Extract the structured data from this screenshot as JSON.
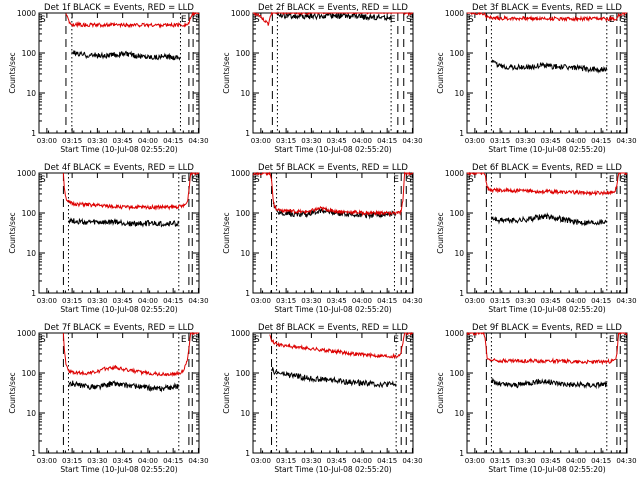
{
  "colors": {
    "events": "#000000",
    "lld": "#dd0000",
    "axis": "#000000",
    "background": "#ffffff"
  },
  "chart_data": [
    {
      "type": "line",
      "title": "Det 1f BLACK = Events, RED = LLD",
      "xlabel": "Start Time (10-Jul-08 02:55:20)",
      "ylabel": "Counts/sec",
      "x_ticks": [
        "03:00",
        "03:15",
        "03:30",
        "03:45",
        "04:00",
        "04:15",
        "04:30"
      ],
      "y_ticks": [
        "1",
        "10",
        "100",
        "1000"
      ],
      "yscale": "log",
      "ylim": [
        1,
        1000
      ],
      "xlim_minutes": [
        0,
        95
      ],
      "marker_labels": [
        "S",
        "E",
        "S"
      ],
      "markers": {
        "dashed": [
          16,
          89,
          91.5
        ],
        "dotted": [
          19.5,
          84
        ]
      },
      "series": [
        {
          "role": "events",
          "x": [
            19.5,
            21,
            25,
            30,
            35,
            40,
            45,
            50,
            55,
            60,
            65,
            70,
            75,
            80,
            84
          ],
          "y": [
            110,
            98,
            92,
            88,
            87,
            84,
            90,
            96,
            88,
            84,
            82,
            80,
            80,
            80,
            80
          ]
        },
        {
          "role": "lld",
          "x": [
            16,
            17,
            18,
            20,
            25,
            30,
            40,
            50,
            60,
            70,
            80,
            88,
            89,
            90,
            92,
            95
          ],
          "y": [
            1000,
            800,
            540,
            520,
            510,
            505,
            500,
            500,
            500,
            500,
            500,
            510,
            560,
            750,
            1000,
            1000
          ]
        }
      ]
    },
    {
      "type": "line",
      "title": "Det 2f BLACK = Events, RED = LLD",
      "xlabel": "Start Time (10-Jul-08 02:55:20)",
      "ylabel": "Counts/sec",
      "x_ticks": [
        "03:00",
        "03:15",
        "03:30",
        "03:45",
        "04:00",
        "04:15",
        "04:30"
      ],
      "y_ticks": [
        "1",
        "10",
        "100",
        "1000"
      ],
      "yscale": "log",
      "ylim": [
        1,
        1000
      ],
      "xlim_minutes": [
        0,
        95
      ],
      "marker_labels": [
        "S",
        "E",
        "S"
      ],
      "markers": {
        "dashed": [
          11.5,
          86,
          89.5
        ],
        "dotted": [
          14.5,
          82
        ]
      },
      "series": [
        {
          "role": "events",
          "x": [
            14.5,
            20,
            30,
            40,
            48,
            50,
            60,
            70,
            80,
            82
          ],
          "y": [
            900,
            850,
            820,
            830,
            870,
            860,
            820,
            780,
            760,
            750
          ]
        },
        {
          "role": "lld",
          "x": [
            0,
            3,
            6,
            9,
            11,
            12,
            14,
            20,
            30,
            40,
            50,
            60,
            70,
            80,
            86,
            88,
            90,
            95
          ],
          "y": [
            1000,
            900,
            700,
            520,
            1000,
            1100,
            1050,
            1030,
            1020,
            1050,
            1080,
            1060,
            1060,
            1060,
            1080,
            1200,
            1000,
            1000
          ]
        }
      ]
    },
    {
      "type": "line",
      "title": "Det 3f BLACK = Events, RED = LLD",
      "xlabel": "Start Time (10-Jul-08 02:55:20)",
      "ylabel": "Counts/sec",
      "x_ticks": [
        "03:00",
        "03:15",
        "03:30",
        "03:45",
        "04:00",
        "04:15",
        "04:30"
      ],
      "y_ticks": [
        "1",
        "10",
        "100",
        "1000"
      ],
      "yscale": "log",
      "ylim": [
        1,
        1000
      ],
      "xlim_minutes": [
        0,
        95
      ],
      "marker_labels": [
        "S",
        "E",
        "S"
      ],
      "markers": {
        "dashed": [
          11.5,
          89,
          91
        ],
        "dotted": [
          14.5,
          83
        ]
      },
      "series": [
        {
          "role": "events",
          "x": [
            14.5,
            16,
            20,
            25,
            30,
            40,
            45,
            50,
            60,
            70,
            80,
            83
          ],
          "y": [
            62,
            55,
            47,
            45,
            44,
            45,
            50,
            47,
            44,
            40,
            38,
            38
          ]
        },
        {
          "role": "lld",
          "x": [
            0,
            10,
            11,
            12,
            13,
            20,
            40,
            60,
            80,
            88,
            89,
            90,
            95
          ],
          "y": [
            1000,
            1000,
            900,
            800,
            760,
            740,
            730,
            720,
            710,
            720,
            760,
            900,
            1000
          ]
        }
      ]
    },
    {
      "type": "line",
      "title": "Det 4f BLACK = Events, RED = LLD",
      "xlabel": "Start Time (10-Jul-08 02:55:20)",
      "ylabel": "Counts/sec",
      "x_ticks": [
        "03:00",
        "03:15",
        "03:30",
        "03:45",
        "04:00",
        "04:15",
        "04:30"
      ],
      "y_ticks": [
        "1",
        "10",
        "100",
        "1000"
      ],
      "yscale": "log",
      "ylim": [
        1,
        1000
      ],
      "xlim_minutes": [
        0,
        95
      ],
      "marker_labels": [
        "S",
        "E",
        "S"
      ],
      "markers": {
        "dashed": [
          14.5,
          89,
          91
        ],
        "dotted": [
          17.5,
          83
        ]
      },
      "series": [
        {
          "role": "events",
          "x": [
            17.5,
            20,
            25,
            30,
            35,
            40,
            45,
            50,
            55,
            60,
            65,
            70,
            75,
            80,
            83
          ],
          "y": [
            68,
            64,
            60,
            58,
            58,
            57,
            60,
            56,
            54,
            55,
            55,
            54,
            54,
            55,
            55
          ]
        },
        {
          "role": "lld",
          "x": [
            14.5,
            15,
            16,
            17,
            18,
            20,
            25,
            30,
            40,
            50,
            60,
            70,
            80,
            86,
            88,
            89,
            90,
            95
          ],
          "y": [
            1000,
            450,
            240,
            200,
            180,
            170,
            165,
            160,
            150,
            140,
            140,
            140,
            140,
            150,
            180,
            350,
            1000,
            1000
          ]
        }
      ]
    },
    {
      "type": "line",
      "title": "Det 5f BLACK = Events, RED = LLD",
      "xlabel": "Start Time (10-Jul-08 02:55:20)",
      "ylabel": "Counts/sec",
      "x_ticks": [
        "03:00",
        "03:15",
        "03:30",
        "03:45",
        "04:00",
        "04:15",
        "04:30"
      ],
      "y_ticks": [
        "1",
        "10",
        "100",
        "1000"
      ],
      "yscale": "log",
      "ylim": [
        1,
        1000
      ],
      "xlim_minutes": [
        0,
        95
      ],
      "marker_labels": [
        "S",
        "E",
        "S"
      ],
      "markers": {
        "dashed": [
          11,
          88,
          91
        ],
        "dotted": [
          14,
          84
        ]
      },
      "series": [
        {
          "role": "events",
          "x": [
            12,
            13,
            15,
            20,
            25,
            30,
            35,
            40,
            45,
            50,
            55,
            60,
            65,
            70,
            75,
            80,
            85
          ],
          "y": [
            180,
            130,
            105,
            100,
            95,
            92,
            100,
            115,
            110,
            100,
            95,
            92,
            90,
            88,
            92,
            95,
            95
          ]
        },
        {
          "role": "lld",
          "x": [
            0,
            10,
            11,
            12,
            13,
            15,
            20,
            25,
            30,
            35,
            40,
            45,
            50,
            55,
            60,
            65,
            70,
            75,
            80,
            85,
            87,
            88,
            89,
            90,
            95
          ],
          "y": [
            1000,
            1000,
            700,
            220,
            140,
            120,
            115,
            110,
            105,
            115,
            130,
            120,
            110,
            105,
            105,
            100,
            100,
            100,
            100,
            100,
            100,
            110,
            200,
            1000,
            1000
          ]
        }
      ]
    },
    {
      "type": "line",
      "title": "Det 6f BLACK = Events, RED = LLD",
      "xlabel": "Start Time (10-Jul-08 02:55:20)",
      "ylabel": "Counts/sec",
      "x_ticks": [
        "03:00",
        "03:15",
        "03:30",
        "03:45",
        "04:00",
        "04:15",
        "04:30"
      ],
      "y_ticks": [
        "1",
        "10",
        "100",
        "1000"
      ],
      "yscale": "log",
      "ylim": [
        1,
        1000
      ],
      "xlim_minutes": [
        0,
        95
      ],
      "marker_labels": [
        "S",
        "E",
        "S"
      ],
      "markers": {
        "dashed": [
          11.5,
          89,
          91
        ],
        "dotted": [
          14.5,
          83
        ]
      },
      "series": [
        {
          "role": "events",
          "x": [
            14.5,
            16,
            20,
            25,
            30,
            35,
            40,
            45,
            50,
            55,
            60,
            65,
            70,
            75,
            80,
            83
          ],
          "y": [
            75,
            70,
            66,
            65,
            65,
            68,
            75,
            82,
            80,
            72,
            65,
            60,
            58,
            58,
            60,
            62
          ]
        },
        {
          "role": "lld",
          "x": [
            0,
            10,
            11,
            12,
            13,
            20,
            30,
            40,
            50,
            60,
            70,
            80,
            86,
            88,
            89,
            90,
            95
          ],
          "y": [
            1000,
            1000,
            800,
            420,
            380,
            370,
            360,
            350,
            340,
            330,
            320,
            320,
            330,
            360,
            500,
            1000,
            1000
          ]
        }
      ]
    },
    {
      "type": "line",
      "title": "Det 7f BLACK = Events, RED = LLD",
      "xlabel": "Start Time (10-Jul-08 02:55:20)",
      "ylabel": "Counts/sec",
      "x_ticks": [
        "03:00",
        "03:15",
        "03:30",
        "03:45",
        "04:00",
        "04:15",
        "04:30"
      ],
      "y_ticks": [
        "1",
        "10",
        "100",
        "1000"
      ],
      "yscale": "log",
      "ylim": [
        1,
        1000
      ],
      "xlim_minutes": [
        0,
        95
      ],
      "marker_labels": [
        "S",
        "E",
        "S"
      ],
      "markers": {
        "dashed": [
          14.5,
          89,
          91
        ],
        "dotted": [
          17.5,
          83
        ]
      },
      "series": [
        {
          "role": "events",
          "x": [
            17.5,
            20,
            25,
            30,
            35,
            40,
            45,
            50,
            55,
            60,
            65,
            70,
            75,
            80,
            83
          ],
          "y": [
            50,
            55,
            48,
            45,
            45,
            50,
            55,
            50,
            48,
            45,
            42,
            40,
            42,
            45,
            48
          ]
        },
        {
          "role": "lld",
          "x": [
            14.5,
            15,
            16,
            17,
            18,
            20,
            25,
            30,
            35,
            40,
            45,
            50,
            55,
            60,
            65,
            70,
            75,
            80,
            84,
            86,
            88,
            89,
            90,
            95
          ],
          "y": [
            1000,
            400,
            180,
            120,
            110,
            105,
            100,
            100,
            110,
            130,
            140,
            125,
            115,
            105,
            100,
            95,
            92,
            95,
            100,
            120,
            200,
            400,
            1000,
            1000
          ]
        }
      ]
    },
    {
      "type": "line",
      "title": "Det 8f BLACK = Events, RED = LLD",
      "xlabel": "Start Time (10-Jul-08 02:55:20)",
      "ylabel": "Counts/sec",
      "x_ticks": [
        "03:00",
        "03:15",
        "03:30",
        "03:45",
        "04:00",
        "04:15",
        "04:30"
      ],
      "y_ticks": [
        "1",
        "10",
        "100",
        "1000"
      ],
      "yscale": "log",
      "ylim": [
        1,
        1000
      ],
      "xlim_minutes": [
        0,
        95
      ],
      "marker_labels": [
        "S",
        "E",
        "S"
      ],
      "markers": {
        "dashed": [
          11,
          88,
          91
        ],
        "dotted": [
          14,
          85
        ]
      },
      "series": [
        {
          "role": "events",
          "x": [
            11,
            12,
            15,
            20,
            25,
            30,
            35,
            40,
            45,
            50,
            55,
            60,
            65,
            70,
            75,
            80,
            85
          ],
          "y": [
            140,
            110,
            100,
            90,
            85,
            78,
            72,
            70,
            68,
            65,
            60,
            58,
            56,
            55,
            52,
            52,
            52
          ]
        },
        {
          "role": "lld",
          "x": [
            10,
            11,
            12,
            15,
            20,
            25,
            30,
            35,
            40,
            45,
            50,
            55,
            60,
            65,
            70,
            75,
            80,
            85,
            87,
            88,
            89,
            90,
            95
          ],
          "y": [
            1000,
            700,
            600,
            520,
            480,
            450,
            420,
            400,
            380,
            360,
            340,
            320,
            300,
            290,
            280,
            270,
            265,
            260,
            280,
            350,
            600,
            1000,
            1000
          ]
        }
      ]
    },
    {
      "type": "line",
      "title": "Det 9f BLACK = Events, RED = LLD",
      "xlabel": "Start Time (10-Jul-08 02:55:20)",
      "ylabel": "Counts/sec",
      "x_ticks": [
        "03:00",
        "03:15",
        "03:30",
        "03:45",
        "04:00",
        "04:15",
        "04:30"
      ],
      "y_ticks": [
        "1",
        "10",
        "100",
        "1000"
      ],
      "yscale": "log",
      "ylim": [
        1,
        1000
      ],
      "xlim_minutes": [
        0,
        95
      ],
      "marker_labels": [
        "S",
        "E",
        "S"
      ],
      "markers": {
        "dashed": [
          11.5,
          89,
          91
        ],
        "dotted": [
          14.5,
          83
        ]
      },
      "series": [
        {
          "role": "events",
          "x": [
            14.5,
            16,
            20,
            25,
            30,
            35,
            40,
            45,
            50,
            55,
            60,
            65,
            70,
            75,
            80,
            83
          ],
          "y": [
            65,
            58,
            52,
            50,
            50,
            55,
            60,
            62,
            58,
            55,
            52,
            50,
            50,
            50,
            52,
            52
          ]
        },
        {
          "role": "lld",
          "x": [
            0,
            10,
            11,
            12,
            13,
            15,
            20,
            30,
            40,
            50,
            60,
            70,
            80,
            86,
            88,
            89,
            90,
            95
          ],
          "y": [
            1000,
            1000,
            600,
            240,
            220,
            210,
            205,
            200,
            200,
            200,
            195,
            190,
            190,
            195,
            210,
            300,
            1000,
            1000
          ]
        }
      ]
    }
  ]
}
